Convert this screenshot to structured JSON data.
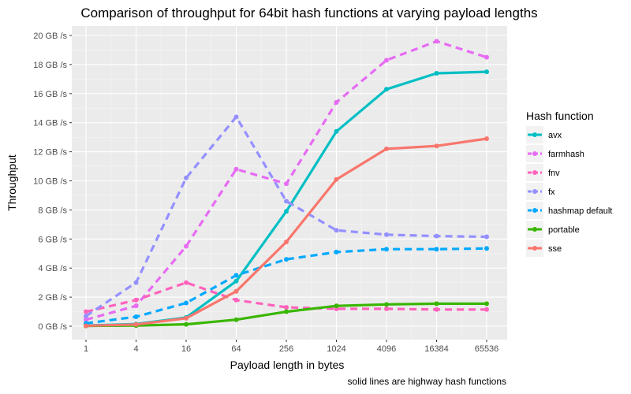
{
  "chart_data": {
    "type": "line",
    "title": "Comparison of throughput for 64bit hash functions at varying payload lengths",
    "xlabel": "Payload length in bytes",
    "ylabel": "Throughput",
    "caption": "solid lines are highway hash functions",
    "x_scale": "log2",
    "categories": [
      "1",
      "4",
      "16",
      "64",
      "256",
      "1024",
      "4096",
      "16384",
      "65536"
    ],
    "y_ticks": [
      "0 GB /s",
      "2 GB /s",
      "4 GB /s",
      "6 GB /s",
      "8 GB /s",
      "10 GB /s",
      "12 GB /s",
      "14 GB /s",
      "16 GB /s",
      "18 GB /s",
      "20 GB /s"
    ],
    "ylim": [
      0,
      20
    ],
    "grid": true,
    "legend": {
      "title": "Hash function",
      "placement": "right",
      "entries": [
        "avx",
        "farmhash",
        "fnv",
        "fx",
        "hashmap default",
        "portable",
        "sse"
      ]
    },
    "series": [
      {
        "name": "avx",
        "color": "#00BFC4",
        "dashed": false,
        "values": [
          0.05,
          0.15,
          0.6,
          3.1,
          7.9,
          13.4,
          16.3,
          17.4,
          17.5
        ]
      },
      {
        "name": "farmhash",
        "color": "#E76BF3",
        "dashed": true,
        "values": [
          0.45,
          1.4,
          5.5,
          10.8,
          9.8,
          15.4,
          18.3,
          19.6,
          18.5
        ]
      },
      {
        "name": "fnv",
        "color": "#FF62BC",
        "dashed": true,
        "values": [
          1.0,
          1.8,
          3.0,
          1.8,
          1.3,
          1.2,
          1.2,
          1.15,
          1.15
        ]
      },
      {
        "name": "fx",
        "color": "#9590FF",
        "dashed": true,
        "values": [
          0.7,
          3.0,
          10.2,
          14.4,
          8.6,
          6.6,
          6.3,
          6.2,
          6.15
        ]
      },
      {
        "name": "hashmap default",
        "color": "#00A9FF",
        "dashed": true,
        "values": [
          0.2,
          0.65,
          1.6,
          3.5,
          4.6,
          5.1,
          5.3,
          5.3,
          5.35
        ]
      },
      {
        "name": "portable",
        "color": "#39B600",
        "dashed": false,
        "values": [
          0.02,
          0.05,
          0.13,
          0.45,
          1.0,
          1.4,
          1.5,
          1.55,
          1.55
        ]
      },
      {
        "name": "sse",
        "color": "#F8766D",
        "dashed": false,
        "values": [
          0.03,
          0.12,
          0.55,
          2.4,
          5.8,
          10.1,
          12.2,
          12.4,
          12.9
        ]
      }
    ]
  }
}
